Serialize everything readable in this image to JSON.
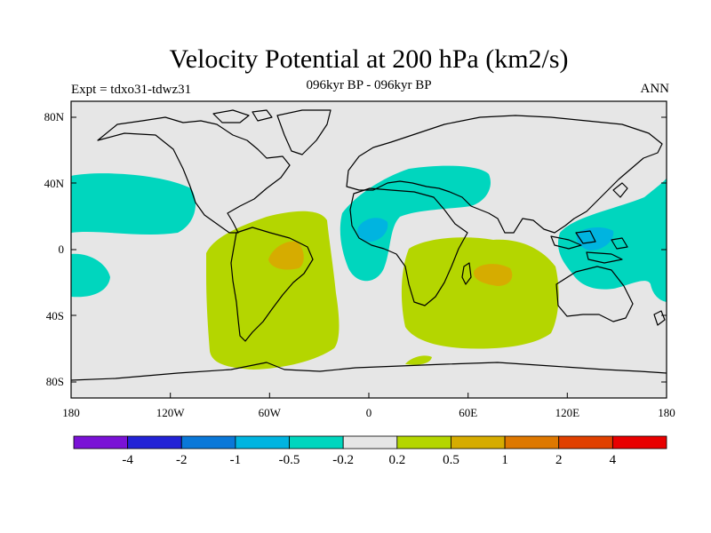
{
  "title": "Velocity Potential at 200 hPa (km2/s)",
  "subtitle": "096kyr BP - 096kyr BP",
  "left_label": "Expt = tdxo31-tdwz31",
  "right_label": "ANN",
  "map": {
    "x_ticks": [
      "180",
      "120W",
      "60W",
      "0",
      "60E",
      "120E",
      "180"
    ],
    "y_ticks": [
      "80N",
      "40N",
      "0",
      "40S",
      "80S"
    ],
    "background_color": "#e6e6e6",
    "coast_color": "#000000"
  },
  "colorbar": {
    "colors": [
      "#7a12d6",
      "#2222d6",
      "#0a78d8",
      "#00b4e0",
      "#00d6be",
      "#e6e6e6",
      "#b4d600",
      "#d6ac00",
      "#de7800",
      "#e04000",
      "#e80000"
    ],
    "labels": [
      "-4",
      "-2",
      "-1",
      "-0.5",
      "-0.2",
      "0.2",
      "0.5",
      "1",
      "2",
      "4"
    ]
  }
}
